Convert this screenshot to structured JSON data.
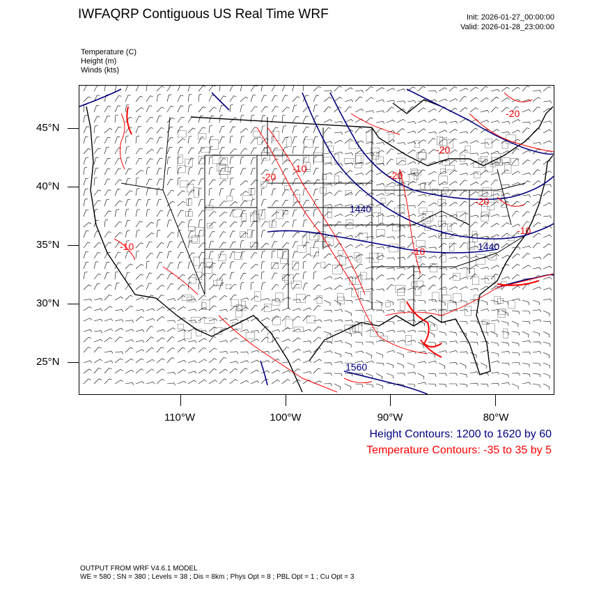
{
  "header": {
    "title": "IWFAQRP Contiguous US Real Time WRF",
    "init": "Init: 2026-01-27_00:00:00",
    "valid": "Valid: 2026-01-28_23:00:00"
  },
  "variables": [
    "Temperature   (C)",
    "Height   (m)",
    "Winds   (kts)"
  ],
  "axes": {
    "lat_labels": [
      "45°N",
      "40°N",
      "35°N",
      "30°N",
      "25°N"
    ],
    "lon_labels": [
      "110°W",
      "100°W",
      "90°W",
      "80°W"
    ]
  },
  "contour_labels": {
    "height": [
      "1440",
      "1440",
      "1560"
    ],
    "temperature": [
      "-20",
      "-10",
      "-20",
      "-10",
      "-20",
      "-10",
      "-10",
      "-20",
      "-20"
    ]
  },
  "legend": {
    "height": "Height Contours: 1200 to 1620 by 60",
    "temperature": "Temperature Contours: -35 to 35 by 5"
  },
  "footer": {
    "line1": "OUTPUT FROM WRF V4.6.1 MODEL",
    "line2": "WE = 580 ; SN = 380 ; Levels = 38 ; Dis = 8km ; Phys Opt = 8 ; PBL Opt = 1 ; Cu Opt = 3"
  },
  "colors": {
    "height": "#000080",
    "temperature": "#ff0000",
    "borders": "#000000"
  }
}
